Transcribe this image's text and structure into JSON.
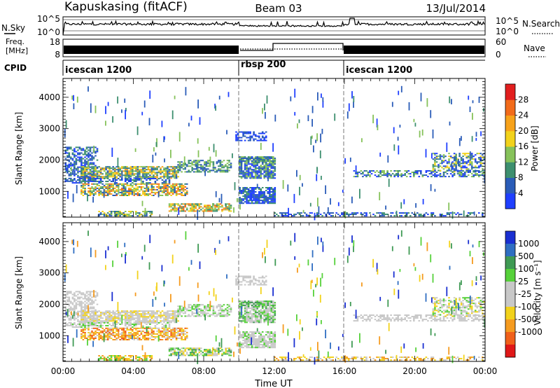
{
  "header": {
    "station": "Kapuskasing (fitACF)",
    "beam": "Beam 03",
    "date": "13/Jul/2014"
  },
  "noise_panel": {
    "left_label": "N.Sky",
    "right_label": "N.Search",
    "left_ticks": [
      "10^5",
      "10^0"
    ],
    "right_ticks": [
      "10^5",
      "10^0"
    ]
  },
  "freq_panel": {
    "left_label_line1": "Freq.",
    "left_label_line2": "[MHz]",
    "right_label": "Nave",
    "left_ticks": [
      "18",
      "8"
    ],
    "right_ticks": [
      "60",
      "0"
    ]
  },
  "cpid_panel": {
    "label": "CPID",
    "segments": [
      {
        "name": "icescan 1200",
        "start_hour": 0,
        "end_hour": 10
      },
      {
        "name": "rbsp 200",
        "start_hour": 10,
        "end_hour": 16
      },
      {
        "name": "icescan 1200",
        "start_hour": 16,
        "end_hour": 24
      }
    ]
  },
  "colors": {
    "power_scale": [
      "#1f3fff",
      "#2a5cb8",
      "#3d8f6f",
      "#86c25a",
      "#f2d21b",
      "#f7a21a",
      "#f26b1a",
      "#e21e1e"
    ],
    "velocity_scale": [
      "#1a2fd1",
      "#2f6ec2",
      "#3f9a54",
      "#56d13a",
      "#c8c8c8",
      "#c8c8c8",
      "#f2d21b",
      "#f59b1f",
      "#f0601a",
      "#e01818"
    ]
  },
  "chart_data": [
    {
      "type": "heatmap",
      "panel": "power",
      "ylabel": "Slant Range [km]",
      "colorbar_label": "Power [dB]",
      "colorbar_ticks": [
        "28",
        "24",
        "20",
        "16",
        "12",
        "8",
        "4"
      ],
      "colorbar_range": [
        0,
        32
      ],
      "x_ticks": [
        "00:00",
        "04:00",
        "08:00",
        "12:00",
        "16:00",
        "20:00",
        "00:00"
      ],
      "xlim_hours": [
        0,
        24
      ],
      "y_ticks": [
        "4000",
        "3000",
        "2000",
        "1000"
      ],
      "ylim": [
        180,
        4600
      ]
    },
    {
      "type": "heatmap",
      "panel": "velocity",
      "ylabel": "Slant Range [km]",
      "xlabel": "Time UT",
      "colorbar_label": "Velocity [m s⁻¹]",
      "colorbar_ticks": [
        "1000",
        "500",
        "100",
        "25",
        "-25",
        "-100",
        "-500",
        "-1000"
      ],
      "x_ticks": [
        "00:00",
        "04:00",
        "08:00",
        "12:00",
        "16:00",
        "20:00",
        "00:00"
      ],
      "xlim_hours": [
        0,
        24
      ],
      "y_ticks": [
        "4000",
        "3000",
        "2000",
        "1000"
      ],
      "ylim": [
        180,
        4600
      ]
    }
  ]
}
